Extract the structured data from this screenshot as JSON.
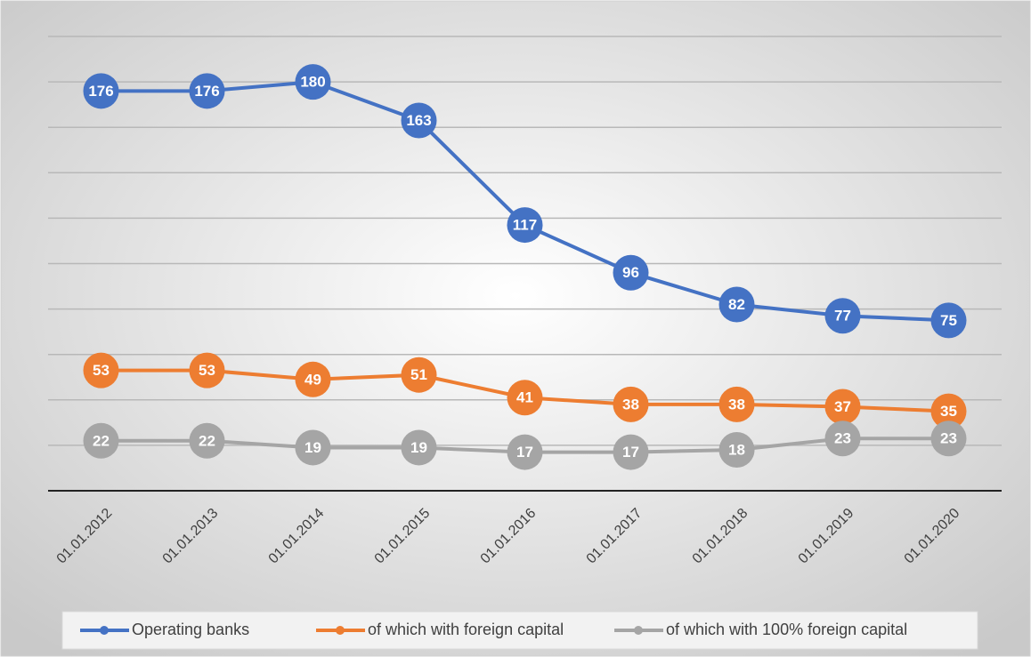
{
  "chart_data": {
    "type": "line",
    "categories": [
      "01.01.2012",
      "01.01.2013",
      "01.01.2014",
      "01.01.2015",
      "01.01.2016",
      "01.01.2017",
      "01.01.2018",
      "01.01.2019",
      "01.01.2020"
    ],
    "series": [
      {
        "name": "Operating banks",
        "color": "#4472c4",
        "values": [
          176,
          176,
          180,
          163,
          117,
          96,
          82,
          77,
          75
        ]
      },
      {
        "name": "of which with foreign capital",
        "color": "#ed7d31",
        "values": [
          53,
          53,
          49,
          51,
          41,
          38,
          38,
          37,
          35
        ]
      },
      {
        "name": "of which with 100% foreign capital",
        "color": "#a5a5a5",
        "values": [
          22,
          22,
          19,
          19,
          17,
          17,
          18,
          23,
          23
        ]
      }
    ],
    "ylim": [
      0,
      200
    ],
    "yticks": [
      0,
      20,
      40,
      60,
      80,
      100,
      120,
      140,
      160,
      180,
      200
    ],
    "grid": true,
    "legend": "bottom"
  }
}
